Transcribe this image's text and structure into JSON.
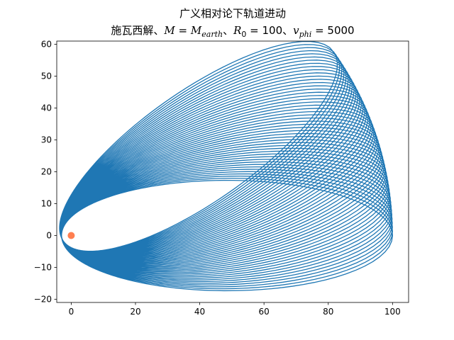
{
  "chart_data": {
    "type": "line",
    "title_line1": "广义相对论下轨道进动",
    "title_line2": "施瓦西解、M = M_earth、R_0 = 100、v_phi = 5000",
    "xlabel": "",
    "ylabel": "",
    "xlim": [
      -4.5,
      105
    ],
    "ylim": [
      -21,
      61
    ],
    "xticks": [
      0,
      20,
      40,
      60,
      80,
      100
    ],
    "yticks": [
      -20,
      -10,
      0,
      10,
      20,
      30,
      40,
      50,
      60
    ],
    "grid": false,
    "series": [
      {
        "color": "#1f77b4",
        "orbit": {
          "apoapsis": 100,
          "periapsis": 3,
          "initial_apoapsis_angle_deg": 0,
          "precession_per_orbit_deg": 0.75,
          "orbit_count": 48
        }
      }
    ],
    "center_marker": {
      "x": 0,
      "y": 0,
      "color": "#ff7f50"
    }
  }
}
